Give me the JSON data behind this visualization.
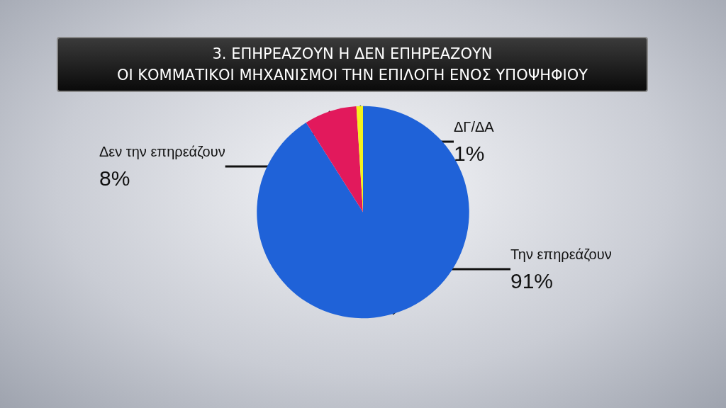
{
  "chart_data": {
    "type": "pie",
    "title": "3. ΕΠΗΡΕΑΖΟΥΝ Η ΔΕΝ ΕΠΗΡΕΑΖΟΥΝ\nΟΙ ΚΟΜΜΑΤΙΚΟΙ ΜΗΧΑΝΙΣΜΟΙ ΤΗΝ ΕΠΙΛΟΓΗ ΕΝΟΣ ΥΠΟΨΗΦΙΟΥ",
    "categories": [
      "Την επηρεάζουν",
      "Δεν την επηρεάζουν",
      "ΔΓ/ΔΑ"
    ],
    "values": [
      91,
      8,
      1
    ],
    "colors": [
      "#1f62d8",
      "#e2195c",
      "#f4f21c"
    ],
    "value_labels": [
      "91%",
      "8%",
      "1%"
    ],
    "legend": false
  }
}
